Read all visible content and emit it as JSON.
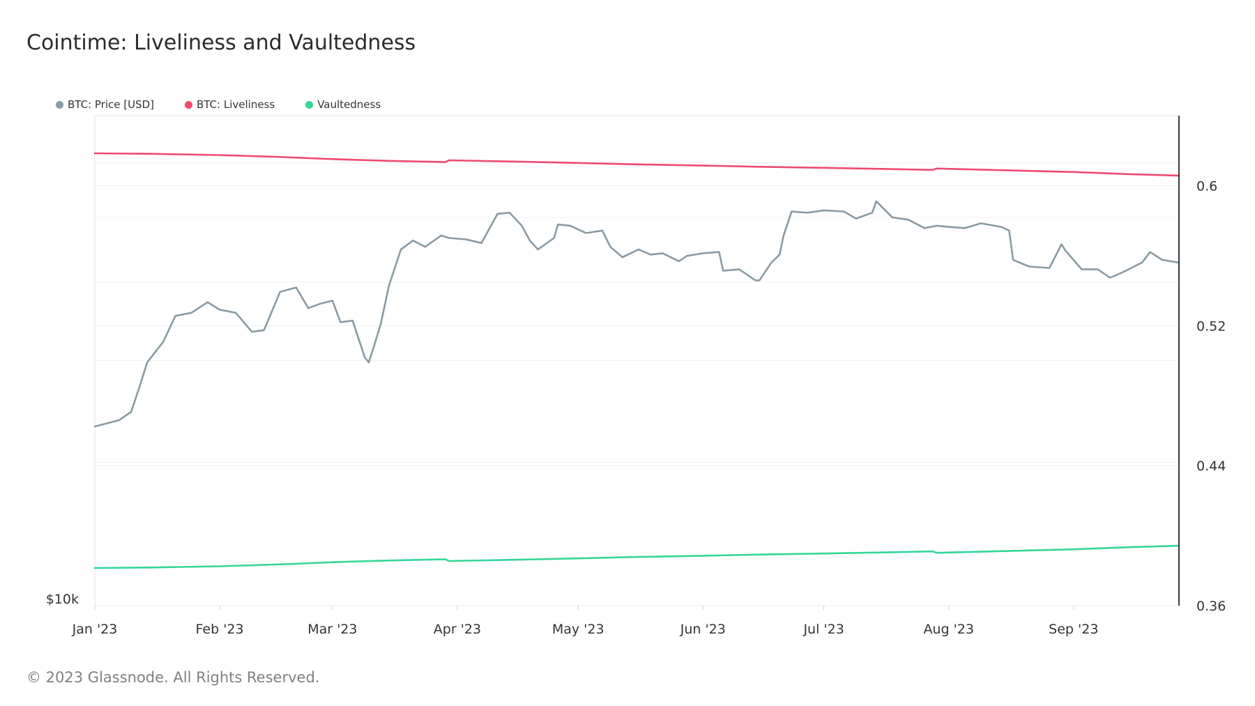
{
  "title": "Cointime: Liveliness and Vaultedness",
  "footer": "© 2023 Glassnode. All Rights Reserved.",
  "legend": [
    {
      "label": "BTC: Price [USD]",
      "color": "#8a9aa3"
    },
    {
      "label": "BTC: Liveliness",
      "color": "#ee4a70"
    },
    {
      "label": "Vaultedness",
      "color": "#35d696"
    }
  ],
  "chart_data": {
    "type": "line",
    "x_tick_labels": [
      "Jan '23",
      "Feb '23",
      "Mar '23",
      "Apr '23",
      "May '23",
      "Jun '23",
      "Jul '23",
      "Aug '23",
      "Sep '23"
    ],
    "x_range": [
      "2023-01-01",
      "2023-09-27"
    ],
    "left_axis": {
      "scale": "log",
      "tick_labels": [
        "$10k"
      ]
    },
    "right_axis": {
      "range": [
        0.36,
        0.64
      ],
      "tick_values": [
        0.36,
        0.44,
        0.52,
        0.6
      ],
      "tick_labels": [
        "0.36",
        "0.44",
        "0.52",
        "0.6"
      ]
    },
    "grid": true,
    "legend_position": "top-left",
    "series": [
      {
        "name": "BTC: Price [USD]",
        "axis": "left",
        "color": "#8a9aa3",
        "x": [
          "2023-01-01",
          "2023-01-07",
          "2023-01-10",
          "2023-01-12",
          "2023-01-14",
          "2023-01-18",
          "2023-01-21",
          "2023-01-25",
          "2023-01-29",
          "2023-02-01",
          "2023-02-05",
          "2023-02-09",
          "2023-02-12",
          "2023-02-16",
          "2023-02-20",
          "2023-02-23",
          "2023-02-26",
          "2023-03-01",
          "2023-03-03",
          "2023-03-06",
          "2023-03-09",
          "2023-03-10",
          "2023-03-11",
          "2023-03-13",
          "2023-03-15",
          "2023-03-18",
          "2023-03-21",
          "2023-03-24",
          "2023-03-28",
          "2023-03-30",
          "2023-04-03",
          "2023-04-07",
          "2023-04-10",
          "2023-04-11",
          "2023-04-14",
          "2023-04-17",
          "2023-04-19",
          "2023-04-21",
          "2023-04-25",
          "2023-04-26",
          "2023-04-29",
          "2023-05-03",
          "2023-05-07",
          "2023-05-09",
          "2023-05-12",
          "2023-05-16",
          "2023-05-19",
          "2023-05-22",
          "2023-05-26",
          "2023-05-28",
          "2023-06-01",
          "2023-06-05",
          "2023-06-06",
          "2023-06-10",
          "2023-06-14",
          "2023-06-15",
          "2023-06-18",
          "2023-06-20",
          "2023-06-21",
          "2023-06-23",
          "2023-06-27",
          "2023-07-01",
          "2023-07-06",
          "2023-07-09",
          "2023-07-13",
          "2023-07-14",
          "2023-07-18",
          "2023-07-22",
          "2023-07-26",
          "2023-07-29",
          "2023-08-01",
          "2023-08-05",
          "2023-08-09",
          "2023-08-14",
          "2023-08-16",
          "2023-08-17",
          "2023-08-21",
          "2023-08-26",
          "2023-08-29",
          "2023-08-30",
          "2023-09-03",
          "2023-09-07",
          "2023-09-10",
          "2023-09-11",
          "2023-09-14",
          "2023-09-18",
          "2023-09-20",
          "2023-09-23",
          "2023-09-27"
        ],
        "values": [
          16600,
          16900,
          17300,
          18500,
          19900,
          21100,
          22700,
          22900,
          23600,
          23100,
          22900,
          21700,
          21800,
          24300,
          24600,
          23200,
          23500,
          23700,
          22300,
          22400,
          20200,
          19900,
          20600,
          22200,
          24700,
          27400,
          28100,
          27600,
          28500,
          28300,
          28200,
          27900,
          29700,
          30300,
          30400,
          29300,
          28100,
          27400,
          28300,
          29400,
          29300,
          28700,
          28900,
          27600,
          26800,
          27400,
          27000,
          27100,
          26500,
          26900,
          27100,
          27200,
          25800,
          25900,
          25100,
          25100,
          26400,
          27000,
          28500,
          30500,
          30400,
          30600,
          30500,
          29900,
          30400,
          31400,
          30000,
          29800,
          29100,
          29300,
          29200,
          29100,
          29500,
          29200,
          28900,
          26600,
          26100,
          26000,
          27800,
          27300,
          25900,
          25900,
          25300,
          25400,
          25800,
          26400,
          27200,
          26600,
          26400
        ]
      },
      {
        "name": "BTC: Liveliness",
        "axis": "right",
        "color": "#ee4a70",
        "x": [
          "2023-01-01",
          "2023-01-15",
          "2023-02-01",
          "2023-02-15",
          "2023-03-01",
          "2023-03-15",
          "2023-03-29",
          "2023-03-30",
          "2023-04-15",
          "2023-05-01",
          "2023-05-15",
          "2023-06-01",
          "2023-06-15",
          "2023-07-01",
          "2023-07-15",
          "2023-07-28",
          "2023-07-29",
          "2023-08-15",
          "2023-09-01",
          "2023-09-15",
          "2023-09-27"
        ],
        "values": [
          0.6185,
          0.6182,
          0.6175,
          0.6165,
          0.6152,
          0.6142,
          0.6135,
          0.6145,
          0.6138,
          0.613,
          0.6122,
          0.6115,
          0.6108,
          0.6102,
          0.6096,
          0.609,
          0.6098,
          0.6088,
          0.6078,
          0.6066,
          0.6058
        ]
      },
      {
        "name": "Vaultedness",
        "axis": "right",
        "color": "#35d696",
        "x": [
          "2023-01-01",
          "2023-01-15",
          "2023-02-01",
          "2023-02-15",
          "2023-03-01",
          "2023-03-15",
          "2023-03-29",
          "2023-03-30",
          "2023-04-15",
          "2023-05-01",
          "2023-05-15",
          "2023-06-01",
          "2023-06-15",
          "2023-07-01",
          "2023-07-15",
          "2023-07-28",
          "2023-07-29",
          "2023-08-15",
          "2023-09-01",
          "2023-09-15",
          "2023-09-27"
        ],
        "values": [
          0.3815,
          0.3818,
          0.3825,
          0.3835,
          0.3848,
          0.3858,
          0.3865,
          0.3855,
          0.3862,
          0.387,
          0.3878,
          0.3885,
          0.3892,
          0.3898,
          0.3904,
          0.391,
          0.3902,
          0.3912,
          0.3922,
          0.3934,
          0.3942
        ]
      }
    ]
  }
}
